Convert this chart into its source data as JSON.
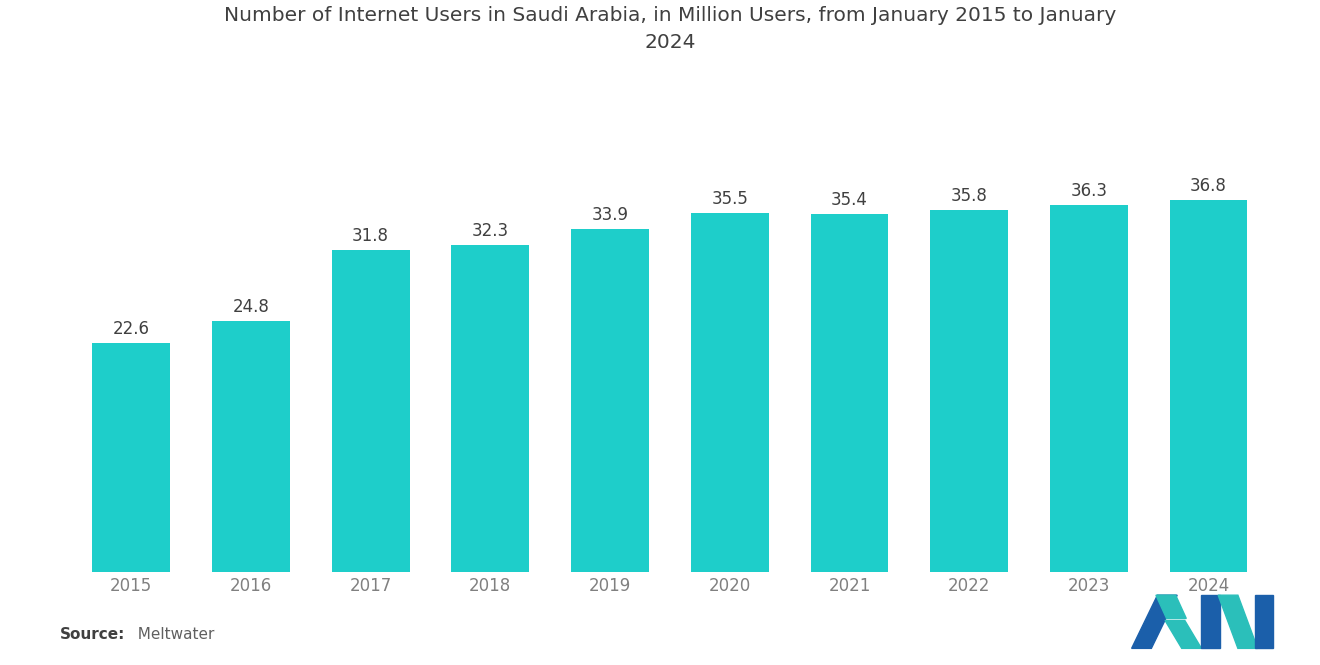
{
  "title": "Number of Internet Users in Saudi Arabia, in Million Users, from January 2015 to January\n2024",
  "years": [
    "2015",
    "2016",
    "2017",
    "2018",
    "2019",
    "2020",
    "2021",
    "2022",
    "2023",
    "2024"
  ],
  "values": [
    22.6,
    24.8,
    31.8,
    32.3,
    33.9,
    35.5,
    35.4,
    35.8,
    36.3,
    36.8
  ],
  "bar_color": "#1ECECA",
  "background_color": "#FFFFFF",
  "title_fontsize": 14.5,
  "label_fontsize": 12,
  "tick_fontsize": 12,
  "source_label": "Source:",
  "source_value": "  Meltwater",
  "ylim": [
    0,
    48
  ],
  "title_color": "#404040",
  "label_color": "#404040",
  "tick_color": "#808080",
  "logo_blue": "#1B5FAA",
  "logo_teal": "#2BBFBA"
}
